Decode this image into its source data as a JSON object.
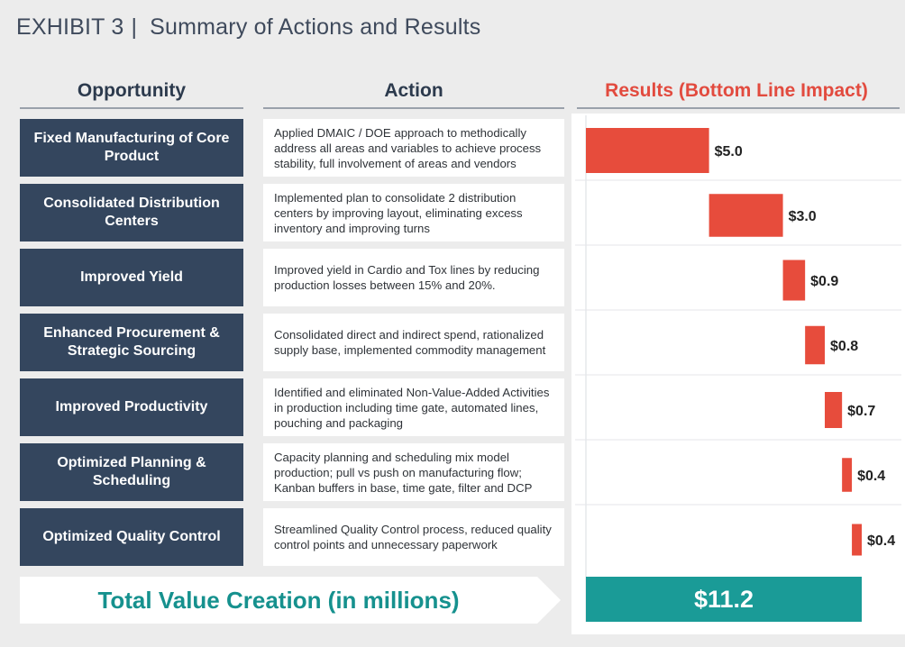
{
  "title": {
    "exhibit": "EXHIBIT 3",
    "separator": "|",
    "text": "Summary of Actions and Results"
  },
  "headers": {
    "opportunity": "Opportunity",
    "action": "Action",
    "results": "Results (Bottom Line Impact)"
  },
  "rows": [
    {
      "opportunity": "Fixed Manufacturing of Core Product",
      "action": "Applied DMAIC / DOE approach to methodically address all areas and variables to achieve process stability, full involvement of areas and vendors"
    },
    {
      "opportunity": "Consolidated Distribution Centers",
      "action": "Implemented plan to consolidate 2 distribution centers by improving layout, eliminating excess inventory and improving turns"
    },
    {
      "opportunity": "Improved Yield",
      "action": "Improved yield in Cardio and Tox lines by reducing production losses between 15% and 20%."
    },
    {
      "opportunity": "Enhanced Procurement & Strategic Sourcing",
      "action": "Consolidated direct and indirect spend, rationalized supply base, implemented commodity management"
    },
    {
      "opportunity": "Improved Productivity",
      "action": "Identified and eliminated Non-Value-Added Activities  in production including time gate, automated lines, pouching and packaging"
    },
    {
      "opportunity": "Optimized Planning & Scheduling",
      "action": "Capacity planning and scheduling mix model production; pull vs push on manufacturing flow; Kanban buffers in base, time gate, filter and DCP"
    },
    {
      "opportunity": "Optimized Quality Control",
      "action": "Streamlined Quality Control process, reduced quality control points and unnecessary paperwork"
    }
  ],
  "total": {
    "label": "Total Value Creation (in millions)",
    "value_label": "$11.2"
  },
  "colors": {
    "navy": "#34465e",
    "red": "#e74c3c",
    "teal": "#1a9b97"
  },
  "chart_data": {
    "type": "bar",
    "subtype": "waterfall",
    "title": "Results (Bottom Line Impact)",
    "categories": [
      "Fixed Manufacturing of Core Product",
      "Consolidated Distribution Centers",
      "Improved Yield",
      "Enhanced Procurement & Strategic Sourcing",
      "Improved Productivity",
      "Optimized Planning & Scheduling",
      "Optimized Quality Control"
    ],
    "values": [
      5.0,
      3.0,
      0.9,
      0.8,
      0.7,
      0.4,
      0.4
    ],
    "labels": [
      "$5.0",
      "$3.0",
      "$0.9",
      "$0.8",
      "$0.7",
      "$0.4",
      "$0.4"
    ],
    "total": 11.2,
    "total_label": "$11.2",
    "units": "$ millions",
    "orientation": "horizontal",
    "grid": false,
    "legend": "none"
  }
}
